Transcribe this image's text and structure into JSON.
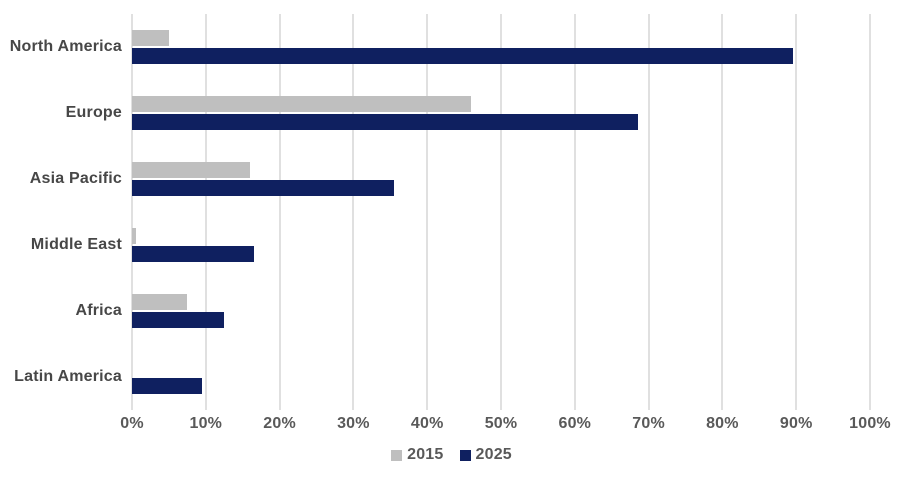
{
  "chart_data": {
    "type": "bar",
    "orientation": "horizontal",
    "categories": [
      "North America",
      "Europe",
      "Asia Pacific",
      "Middle East",
      "Africa",
      "Latin America"
    ],
    "series": [
      {
        "name": "2015",
        "color": "#BFBFBF",
        "values": [
          5,
          46,
          16,
          0.5,
          7.5,
          0
        ]
      },
      {
        "name": "2025",
        "color": "#0F2060",
        "values": [
          89.5,
          68.5,
          35.5,
          16.5,
          12.5,
          9.5
        ]
      }
    ],
    "xlabel": "",
    "ylabel": "",
    "xlim": [
      0,
      100
    ],
    "x_tick_labels": [
      "0%",
      "10%",
      "20%",
      "30%",
      "40%",
      "50%",
      "60%",
      "70%",
      "80%",
      "90%",
      "100%"
    ],
    "grid": true,
    "gridline_color": "#E0E0E0",
    "legend_position": "bottom",
    "legend_entries": [
      "2015",
      "2025"
    ]
  }
}
